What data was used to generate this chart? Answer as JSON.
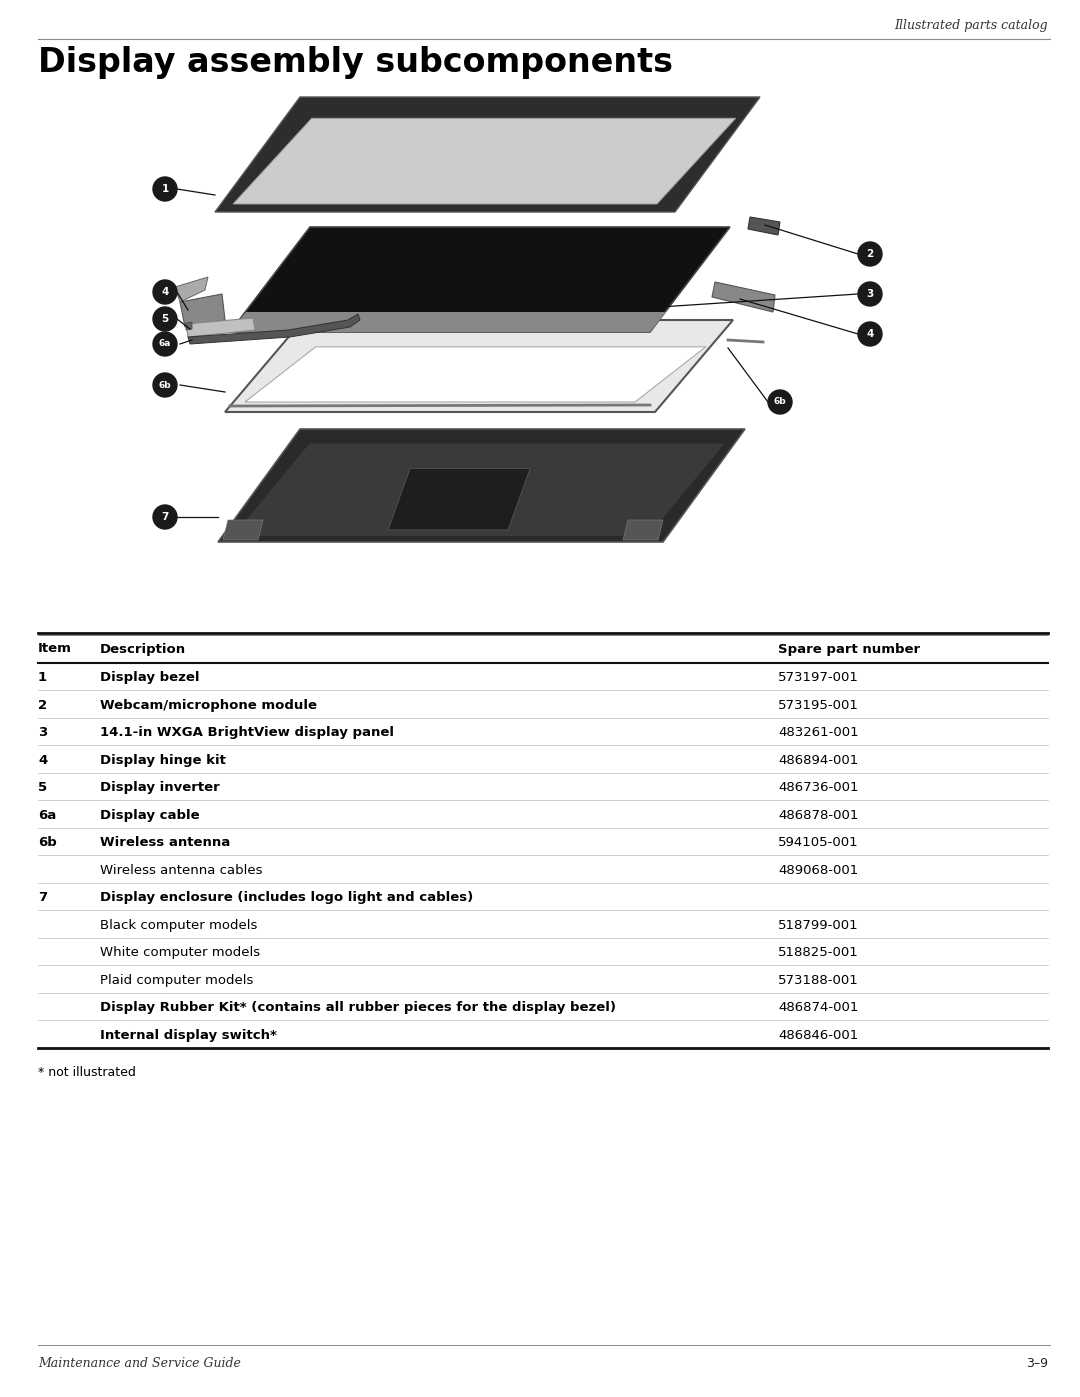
{
  "page_title": "Display assembly subcomponents",
  "header_right": "Illustrated parts catalog",
  "footer_left": "Maintenance and Service Guide",
  "footer_right": "3–9",
  "table_headers": [
    "Item",
    "Description",
    "Spare part number"
  ],
  "table_rows": [
    {
      "item": "1",
      "bold": true,
      "description": "Display bezel",
      "part": "573197-001"
    },
    {
      "item": "2",
      "bold": true,
      "description": "Webcam/microphone module",
      "part": "573195-001"
    },
    {
      "item": "3",
      "bold": true,
      "description": "14.1-in WXGA BrightView display panel",
      "part": "483261-001"
    },
    {
      "item": "4",
      "bold": true,
      "description": "Display hinge kit",
      "part": "486894-001"
    },
    {
      "item": "5",
      "bold": true,
      "description": "Display inverter",
      "part": "486736-001"
    },
    {
      "item": "6a",
      "bold": true,
      "description": "Display cable",
      "part": "486878-001"
    },
    {
      "item": "6b",
      "bold": true,
      "description": "Wireless antenna",
      "part": "594105-001"
    },
    {
      "item": "",
      "bold": false,
      "description": "Wireless antenna cables",
      "part": "489068-001"
    },
    {
      "item": "7",
      "bold": true,
      "description": "Display enclosure (includes logo light and cables)",
      "part": ""
    },
    {
      "item": "",
      "bold": false,
      "description": "Black computer models",
      "part": "518799-001"
    },
    {
      "item": "",
      "bold": false,
      "description": "White computer models",
      "part": "518825-001"
    },
    {
      "item": "",
      "bold": false,
      "description": "Plaid computer models",
      "part": "573188-001"
    },
    {
      "item": "",
      "bold": true,
      "description": "Display Rubber Kit* (contains all rubber pieces for the display bezel)",
      "part": "486874-001"
    },
    {
      "item": "",
      "bold": true,
      "description": "Internal display switch*",
      "part": "486846-001"
    }
  ],
  "footnote": "* not illustrated",
  "bg_color": "#ffffff",
  "text_color": "#000000"
}
